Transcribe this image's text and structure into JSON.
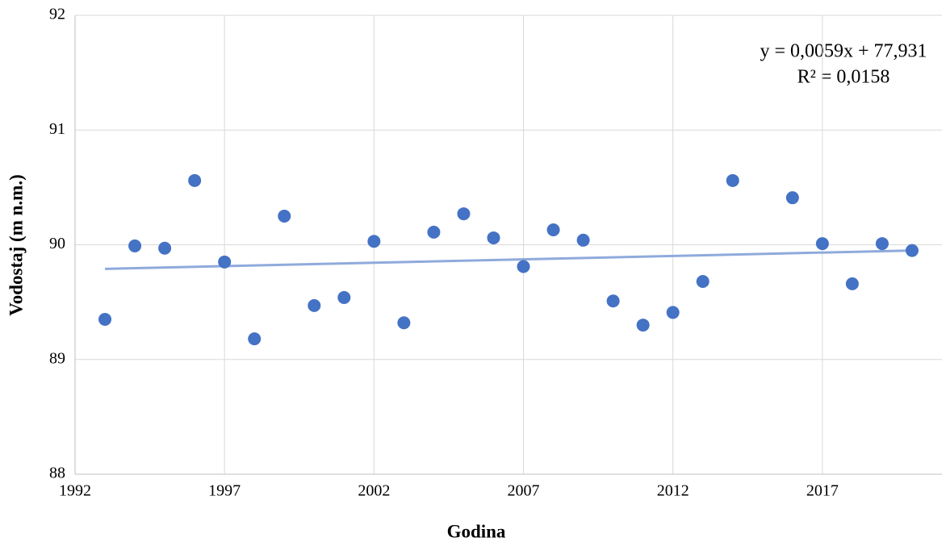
{
  "chart_data": {
    "type": "scatter",
    "xlabel": "Godina",
    "ylabel": "Vodostaj (m n.m.)",
    "annotations": [
      "y = 0,0059x + 77,931",
      "R² = 0,0158"
    ],
    "x": [
      1993,
      1994,
      1995,
      1996,
      1997,
      1998,
      1999,
      2000,
      2001,
      2002,
      2003,
      2004,
      2005,
      2006,
      2007,
      2008,
      2009,
      2010,
      2011,
      2012,
      2013,
      2014,
      2016,
      2017,
      2018,
      2019,
      2020
    ],
    "values": [
      89.35,
      89.99,
      89.97,
      90.56,
      89.85,
      89.18,
      90.25,
      89.47,
      89.54,
      90.03,
      89.32,
      90.11,
      90.27,
      90.06,
      89.81,
      90.13,
      90.04,
      89.51,
      89.3,
      89.41,
      89.68,
      90.56,
      90.41,
      90.01,
      89.66,
      90.01,
      89.95
    ],
    "color": "#4472c4",
    "trendline": {
      "x": [
        1993,
        2020
      ],
      "values": [
        89.79,
        89.95
      ],
      "color": "#8faadc"
    },
    "xlim": [
      1992,
      2021
    ],
    "xticks": [
      1992,
      1997,
      2002,
      2007,
      2012,
      2017
    ],
    "ylim": [
      88,
      92
    ],
    "yticks": [
      88,
      89,
      90,
      91,
      92
    ],
    "grid": true
  }
}
